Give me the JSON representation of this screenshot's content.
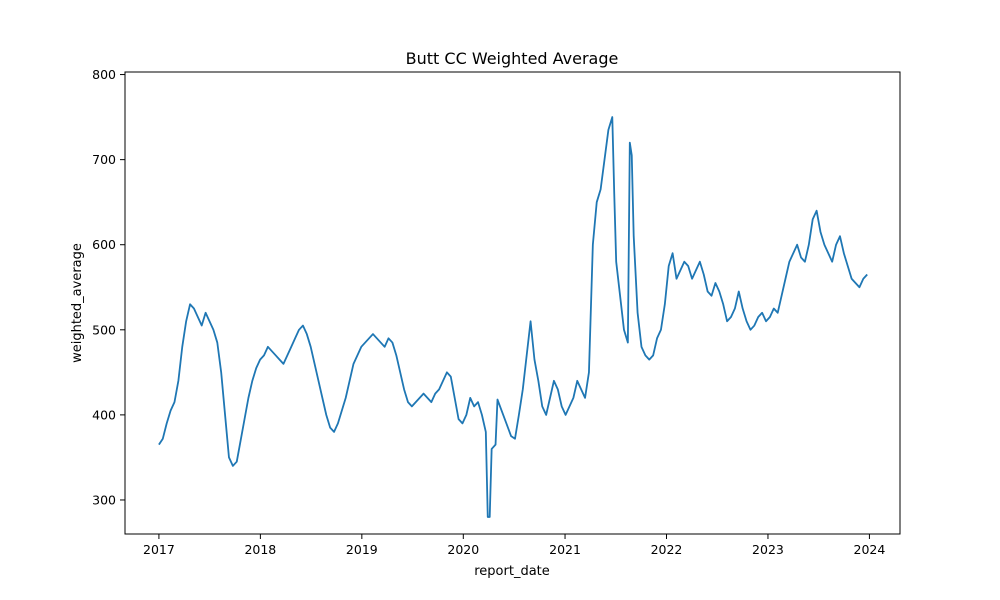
{
  "chart_data": {
    "type": "line",
    "title": "Butt CC Weighted Average",
    "xlabel": "report_date",
    "ylabel": "weighted_average",
    "xlim": [
      "2016-09-01",
      "2024-04-20"
    ],
    "ylim": [
      260,
      803
    ],
    "x_ticks": [
      "2017",
      "2018",
      "2019",
      "2020",
      "2021",
      "2022",
      "2023",
      "2024"
    ],
    "y_ticks": [
      300,
      400,
      500,
      600,
      700,
      800
    ],
    "grid": false,
    "legend": "none",
    "series": [
      {
        "color": "#1f77b4",
        "points": [
          [
            "2017-01-01",
            365
          ],
          [
            "2017-01-15",
            372
          ],
          [
            "2017-01-29",
            390
          ],
          [
            "2017-02-12",
            405
          ],
          [
            "2017-02-26",
            415
          ],
          [
            "2017-03-12",
            440
          ],
          [
            "2017-03-26",
            480
          ],
          [
            "2017-04-09",
            510
          ],
          [
            "2017-04-23",
            530
          ],
          [
            "2017-05-07",
            525
          ],
          [
            "2017-05-21",
            515
          ],
          [
            "2017-06-04",
            505
          ],
          [
            "2017-06-18",
            520
          ],
          [
            "2017-07-02",
            510
          ],
          [
            "2017-07-16",
            500
          ],
          [
            "2017-07-30",
            485
          ],
          [
            "2017-08-13",
            450
          ],
          [
            "2017-08-27",
            400
          ],
          [
            "2017-09-10",
            350
          ],
          [
            "2017-09-24",
            340
          ],
          [
            "2017-10-08",
            345
          ],
          [
            "2017-10-22",
            370
          ],
          [
            "2017-11-05",
            395
          ],
          [
            "2017-11-19",
            420
          ],
          [
            "2017-12-03",
            440
          ],
          [
            "2017-12-17",
            455
          ],
          [
            "2017-12-31",
            465
          ],
          [
            "2018-01-14",
            470
          ],
          [
            "2018-01-28",
            480
          ],
          [
            "2018-02-11",
            475
          ],
          [
            "2018-02-25",
            470
          ],
          [
            "2018-03-11",
            465
          ],
          [
            "2018-03-25",
            460
          ],
          [
            "2018-04-08",
            470
          ],
          [
            "2018-04-22",
            480
          ],
          [
            "2018-05-06",
            490
          ],
          [
            "2018-05-20",
            500
          ],
          [
            "2018-06-03",
            505
          ],
          [
            "2018-06-17",
            495
          ],
          [
            "2018-07-01",
            480
          ],
          [
            "2018-07-15",
            460
          ],
          [
            "2018-07-29",
            440
          ],
          [
            "2018-08-12",
            420
          ],
          [
            "2018-08-26",
            400
          ],
          [
            "2018-09-09",
            385
          ],
          [
            "2018-09-23",
            380
          ],
          [
            "2018-10-07",
            390
          ],
          [
            "2018-10-21",
            405
          ],
          [
            "2018-11-04",
            420
          ],
          [
            "2018-11-18",
            440
          ],
          [
            "2018-12-02",
            460
          ],
          [
            "2018-12-16",
            470
          ],
          [
            "2018-12-30",
            480
          ],
          [
            "2019-01-13",
            485
          ],
          [
            "2019-01-27",
            490
          ],
          [
            "2019-02-10",
            495
          ],
          [
            "2019-02-24",
            490
          ],
          [
            "2019-03-10",
            485
          ],
          [
            "2019-03-24",
            480
          ],
          [
            "2019-04-07",
            490
          ],
          [
            "2019-04-21",
            485
          ],
          [
            "2019-05-05",
            470
          ],
          [
            "2019-05-19",
            450
          ],
          [
            "2019-06-02",
            430
          ],
          [
            "2019-06-16",
            415
          ],
          [
            "2019-06-30",
            410
          ],
          [
            "2019-07-14",
            415
          ],
          [
            "2019-07-28",
            420
          ],
          [
            "2019-08-11",
            425
          ],
          [
            "2019-08-25",
            420
          ],
          [
            "2019-09-08",
            415
          ],
          [
            "2019-09-22",
            425
          ],
          [
            "2019-10-06",
            430
          ],
          [
            "2019-10-20",
            440
          ],
          [
            "2019-11-03",
            450
          ],
          [
            "2019-11-17",
            445
          ],
          [
            "2019-12-01",
            420
          ],
          [
            "2019-12-15",
            395
          ],
          [
            "2019-12-29",
            390
          ],
          [
            "2020-01-12",
            400
          ],
          [
            "2020-01-26",
            420
          ],
          [
            "2020-02-09",
            410
          ],
          [
            "2020-02-23",
            415
          ],
          [
            "2020-03-08",
            400
          ],
          [
            "2020-03-22",
            380
          ],
          [
            "2020-03-29",
            280
          ],
          [
            "2020-04-05",
            280
          ],
          [
            "2020-04-12",
            360
          ],
          [
            "2020-04-26",
            365
          ],
          [
            "2020-05-03",
            418
          ],
          [
            "2020-06-21",
            375
          ],
          [
            "2020-07-05",
            372
          ],
          [
            "2020-07-19",
            400
          ],
          [
            "2020-08-02",
            430
          ],
          [
            "2020-08-16",
            470
          ],
          [
            "2020-08-30",
            510
          ],
          [
            "2020-09-13",
            465
          ],
          [
            "2020-09-27",
            440
          ],
          [
            "2020-10-11",
            410
          ],
          [
            "2020-10-25",
            400
          ],
          [
            "2020-11-08",
            420
          ],
          [
            "2020-11-22",
            440
          ],
          [
            "2020-12-06",
            430
          ],
          [
            "2020-12-20",
            410
          ],
          [
            "2021-01-03",
            400
          ],
          [
            "2021-01-17",
            410
          ],
          [
            "2021-01-31",
            420
          ],
          [
            "2021-02-14",
            440
          ],
          [
            "2021-02-28",
            430
          ],
          [
            "2021-03-14",
            420
          ],
          [
            "2021-03-28",
            450
          ],
          [
            "2021-04-11",
            600
          ],
          [
            "2021-04-25",
            650
          ],
          [
            "2021-05-09",
            665
          ],
          [
            "2021-05-23",
            700
          ],
          [
            "2021-06-06",
            735
          ],
          [
            "2021-06-20",
            750
          ],
          [
            "2021-06-27",
            660
          ],
          [
            "2021-07-04",
            580
          ],
          [
            "2021-07-18",
            540
          ],
          [
            "2021-08-01",
            500
          ],
          [
            "2021-08-15",
            485
          ],
          [
            "2021-08-22",
            720
          ],
          [
            "2021-08-29",
            705
          ],
          [
            "2021-09-05",
            610
          ],
          [
            "2021-09-19",
            520
          ],
          [
            "2021-10-03",
            480
          ],
          [
            "2021-10-17",
            470
          ],
          [
            "2021-10-31",
            465
          ],
          [
            "2021-11-14",
            470
          ],
          [
            "2021-11-28",
            490
          ],
          [
            "2021-12-12",
            500
          ],
          [
            "2021-12-26",
            530
          ],
          [
            "2022-01-09",
            575
          ],
          [
            "2022-01-23",
            590
          ],
          [
            "2022-02-06",
            560
          ],
          [
            "2022-02-20",
            570
          ],
          [
            "2022-03-06",
            580
          ],
          [
            "2022-03-20",
            575
          ],
          [
            "2022-04-03",
            560
          ],
          [
            "2022-04-17",
            570
          ],
          [
            "2022-05-01",
            580
          ],
          [
            "2022-05-15",
            565
          ],
          [
            "2022-05-29",
            545
          ],
          [
            "2022-06-12",
            540
          ],
          [
            "2022-06-26",
            555
          ],
          [
            "2022-07-10",
            545
          ],
          [
            "2022-07-24",
            530
          ],
          [
            "2022-08-07",
            510
          ],
          [
            "2022-08-21",
            515
          ],
          [
            "2022-09-04",
            525
          ],
          [
            "2022-09-18",
            545
          ],
          [
            "2022-10-02",
            525
          ],
          [
            "2022-10-16",
            510
          ],
          [
            "2022-10-30",
            500
          ],
          [
            "2022-11-13",
            505
          ],
          [
            "2022-11-27",
            515
          ],
          [
            "2022-12-11",
            520
          ],
          [
            "2022-12-25",
            510
          ],
          [
            "2023-01-08",
            515
          ],
          [
            "2023-01-22",
            525
          ],
          [
            "2023-02-05",
            520
          ],
          [
            "2023-02-19",
            540
          ],
          [
            "2023-03-05",
            560
          ],
          [
            "2023-03-19",
            580
          ],
          [
            "2023-04-02",
            590
          ],
          [
            "2023-04-16",
            600
          ],
          [
            "2023-04-30",
            585
          ],
          [
            "2023-05-14",
            580
          ],
          [
            "2023-05-28",
            600
          ],
          [
            "2023-06-11",
            630
          ],
          [
            "2023-06-25",
            640
          ],
          [
            "2023-07-09",
            615
          ],
          [
            "2023-07-23",
            600
          ],
          [
            "2023-08-06",
            590
          ],
          [
            "2023-08-20",
            580
          ],
          [
            "2023-09-03",
            600
          ],
          [
            "2023-09-17",
            610
          ],
          [
            "2023-10-01",
            590
          ],
          [
            "2023-10-15",
            575
          ],
          [
            "2023-10-29",
            560
          ],
          [
            "2023-11-12",
            555
          ],
          [
            "2023-11-26",
            550
          ],
          [
            "2023-12-10",
            560
          ],
          [
            "2023-12-24",
            565
          ]
        ]
      }
    ]
  }
}
